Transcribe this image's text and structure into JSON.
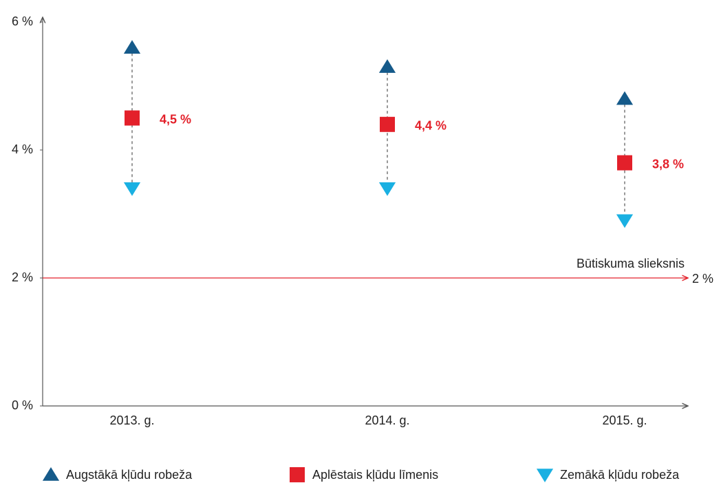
{
  "chart_data": {
    "type": "range-dot",
    "categories": [
      "2013. g.",
      "2014. g.",
      "2015. g."
    ],
    "series": [
      {
        "name": "Augstākā kļūdu robeža",
        "color": "#155a8a",
        "marker": "triangle-up",
        "values": [
          5.6,
          5.3,
          4.8
        ]
      },
      {
        "name": "Aplēstais kļūdu līmenis",
        "color": "#e3202a",
        "marker": "square",
        "values": [
          4.5,
          4.4,
          3.8
        ],
        "value_labels": [
          "4,5 %",
          "4,4 %",
          "3,8 %"
        ]
      },
      {
        "name": "Zemākā kļūdu robeža",
        "color": "#1ab0e2",
        "marker": "triangle-down",
        "values": [
          3.4,
          3.4,
          2.9
        ]
      }
    ],
    "ylim": [
      0,
      6
    ],
    "yticks": [
      {
        "value": 0,
        "label": "0 %"
      },
      {
        "value": 2,
        "label": "2 %"
      },
      {
        "value": 4,
        "label": "4 %"
      },
      {
        "value": 6,
        "label": "6 %"
      }
    ],
    "threshold": {
      "value": 2,
      "label": "Būtiskuma slieksnis",
      "value_label": "2 %",
      "color": "#e3202a"
    },
    "legend": "bottom"
  }
}
